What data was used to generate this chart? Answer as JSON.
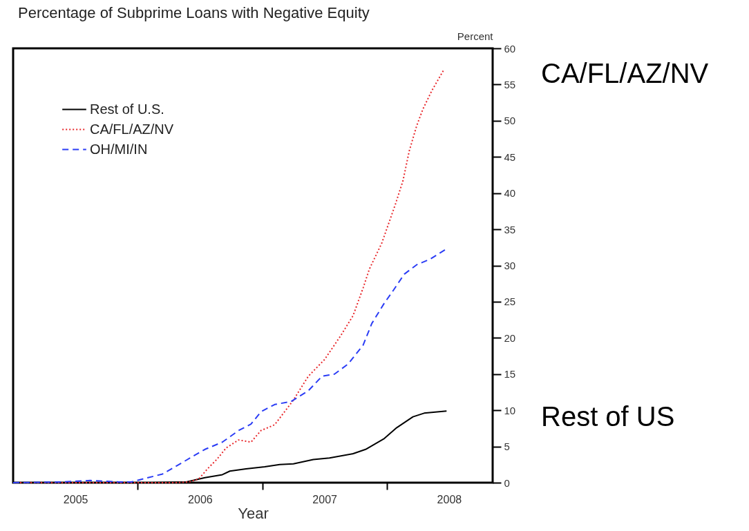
{
  "chart_data": {
    "type": "line",
    "title": "Percentage of Subprime Loans with Negative Equity",
    "xlabel": "Year",
    "ylabel": "Percent",
    "xlim": [
      2005,
      2008.85
    ],
    "xticks": [
      {
        "value": 2005.5,
        "label": "2005"
      },
      {
        "value": 2006,
        "label": null
      },
      {
        "value": 2006.5,
        "label": "2006"
      },
      {
        "value": 2007,
        "label": null
      },
      {
        "value": 2007.5,
        "label": "2007"
      },
      {
        "value": 2008,
        "label": null
      },
      {
        "value": 2008.5,
        "label": "2008"
      }
    ],
    "ylim": [
      0,
      60
    ],
    "yticks": [
      0,
      5,
      10,
      15,
      20,
      25,
      30,
      35,
      40,
      45,
      50,
      55,
      60
    ],
    "grid": false,
    "legend": "top left",
    "marker": "none",
    "series": [
      {
        "name": "Rest of U.S.",
        "color": "#000000",
        "line_style": "solid",
        "x": [
          2005.0,
          2005.5,
          2006.0,
          2006.11,
          2006.39,
          2006.54,
          2006.68,
          2006.74,
          2006.87,
          2007.02,
          2007.14,
          2007.25,
          2007.41,
          2007.54,
          2007.73,
          2007.83,
          2007.98,
          2008.08,
          2008.21,
          2008.3,
          2008.48
        ],
        "values": [
          0,
          0,
          0,
          0,
          0.1,
          0.7,
          1.1,
          1.6,
          1.9,
          2.2,
          2.5,
          2.6,
          3.2,
          3.4,
          4.0,
          4.6,
          6.1,
          7.6,
          9.1,
          9.6,
          9.9
        ]
      },
      {
        "name": "CA/FL/AZ/NV",
        "color": "#e8262a",
        "line_style": "dotted",
        "x": [
          2005.0,
          2005.5,
          2006.0,
          2006.3,
          2006.41,
          2006.49,
          2006.56,
          2006.64,
          2006.71,
          2006.81,
          2006.91,
          2006.99,
          2007.1,
          2007.25,
          2007.37,
          2007.5,
          2007.63,
          2007.73,
          2007.81,
          2007.86,
          2007.96,
          2008.07,
          2008.13,
          2008.18,
          2008.24,
          2008.29,
          2008.36,
          2008.46
        ],
        "values": [
          0,
          0,
          0,
          0,
          0.1,
          0.5,
          1.9,
          3.3,
          4.8,
          5.9,
          5.6,
          7.2,
          8.0,
          11.4,
          14.7,
          17.0,
          20.3,
          23.1,
          26.9,
          29.5,
          33.1,
          38.5,
          41.7,
          45.8,
          49.3,
          51.6,
          54.1,
          57.1
        ]
      },
      {
        "name": "OH/MI/IN",
        "color": "#2a3cf5",
        "line_style": "dashed",
        "x": [
          2005.0,
          2005.4,
          2005.62,
          2005.85,
          2005.95,
          2006.2,
          2006.28,
          2006.39,
          2006.54,
          2006.68,
          2006.81,
          2006.91,
          2006.99,
          2007.1,
          2007.23,
          2007.37,
          2007.48,
          2007.58,
          2007.69,
          2007.81,
          2007.88,
          2007.98,
          2008.05,
          2008.14,
          2008.24,
          2008.35,
          2008.47
        ],
        "values": [
          0,
          0.1,
          0.3,
          0.1,
          0.1,
          1.2,
          2.0,
          3.1,
          4.6,
          5.6,
          7.2,
          8.1,
          9.8,
          10.8,
          11.2,
          12.7,
          14.7,
          15.0,
          16.4,
          19.0,
          22.0,
          24.8,
          26.5,
          28.8,
          30.1,
          30.9,
          32.2
        ]
      }
    ],
    "annotations": [
      "CA/FL/AZ/NV",
      "Rest of US"
    ]
  }
}
